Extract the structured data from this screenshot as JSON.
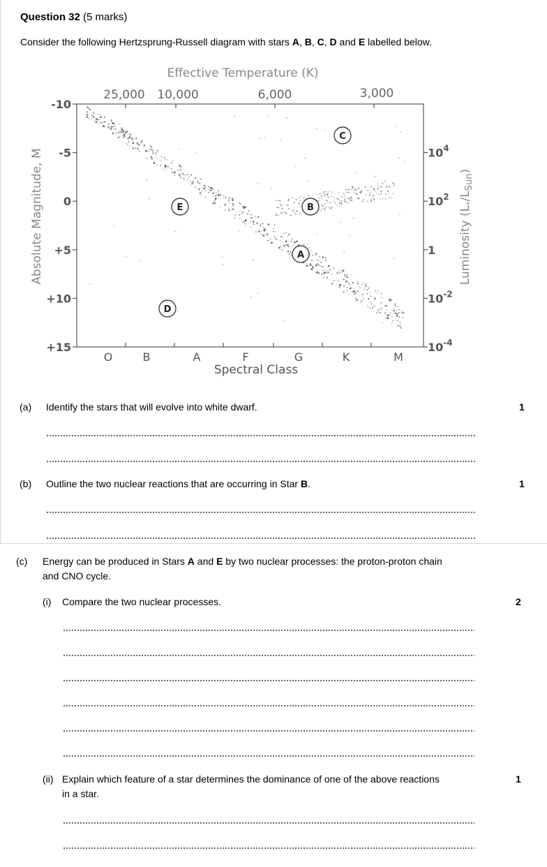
{
  "question": {
    "title": "Question 32",
    "marks": "(5 marks)",
    "intro_pre": "Consider the following Hertzsprung-Russell diagram with stars ",
    "intro_labels": [
      "A",
      "B",
      "C",
      "D",
      "E"
    ],
    "intro_sep": [
      ", ",
      ", ",
      ", ",
      " and "
    ],
    "intro_post": " labelled below."
  },
  "chart_data": {
    "type": "scatter",
    "title": "",
    "top_axis_title": "Effective Temperature (K)",
    "top_ticks": [
      "25,000",
      "10,000",
      "6,000",
      "3,000"
    ],
    "xlabel": "Spectral Class",
    "x_categories": [
      "O",
      "B",
      "A",
      "F",
      "G",
      "K",
      "M"
    ],
    "ylabel": "Absolute Magnitude, M",
    "y_ticks": [
      "-10",
      "-5",
      "0",
      "+5",
      "+10",
      "+15"
    ],
    "ylim": [
      -10,
      15
    ],
    "right_axis_title": "Luminosity (L*/L Sun)",
    "right_ticks": [
      {
        "base": "10",
        "exp": "4",
        "mag": -5
      },
      {
        "base": "10",
        "exp": "2",
        "mag": 0
      },
      {
        "base": "1",
        "exp": "",
        "mag": 5
      },
      {
        "base": "10",
        "exp": "-2",
        "mag": 10
      },
      {
        "base": "10",
        "exp": "-4",
        "mag": 15
      }
    ],
    "labelled_stars": [
      {
        "label": "C",
        "spectral": 4.5,
        "mag": -6.5
      },
      {
        "label": "E",
        "spectral": 2.1,
        "mag": 0.7
      },
      {
        "label": "B",
        "spectral": 4.3,
        "mag": 0.7
      },
      {
        "label": "A",
        "spectral": 4.0,
        "mag": 5.5
      },
      {
        "label": "D",
        "spectral": 1.9,
        "mag": 11.0
      }
    ],
    "grid": false
  },
  "parts": {
    "a": {
      "num": "(a)",
      "text": "Identify the stars that will evolve into white dwarf.",
      "marks": "1"
    },
    "b": {
      "num": "(b)",
      "text_pre": "Outline the two nuclear reactions that are occurring in Star ",
      "text_bold": "B",
      "text_post": ".",
      "marks": "1"
    },
    "c": {
      "num": "(c)",
      "line1_pre": "Energy can be produced in Stars ",
      "bold1": "A",
      "mid": " and ",
      "bold2": "E",
      "line1_post": " by two nuclear processes: the proton-proton chain",
      "line2": "and CNO cycle.",
      "i": {
        "num": "(i)",
        "text": "Compare the two nuclear processes.",
        "marks": "2"
      },
      "ii": {
        "num": "(ii)",
        "text1": "Explain which feature of a star determines the dominance of one of the above reactions",
        "text2": "in a star.",
        "marks": "1"
      }
    }
  }
}
